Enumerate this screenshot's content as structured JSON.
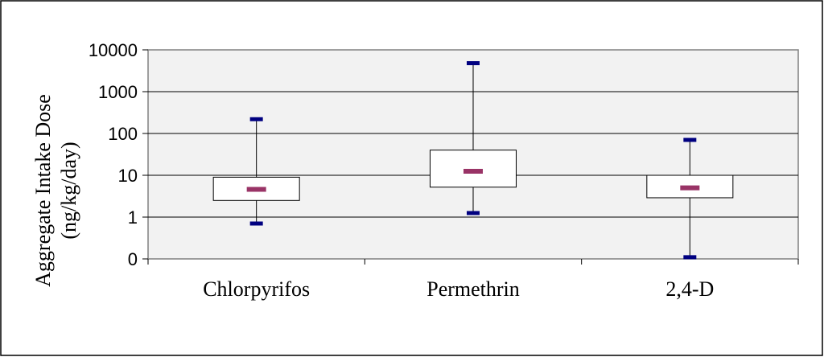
{
  "chart_data": {
    "type": "boxplot",
    "ylabel_line1": "Aggregate Intake Dose",
    "ylabel_line2": "(ng/kg/day)",
    "y_scale": "log",
    "ylim": [
      0.1,
      10000
    ],
    "yticks": [
      0.1,
      1,
      10,
      100,
      1000,
      10000
    ],
    "ytick_labels": [
      "0",
      "1",
      "10",
      "100",
      "1000",
      "10000"
    ],
    "grid": true,
    "categories": [
      "Chlorpyrifos",
      "Permethrin",
      "2,4-D"
    ],
    "boxes": [
      {
        "min": 0.7,
        "q1": 2.5,
        "median": 4.6,
        "q3": 9,
        "max": 220
      },
      {
        "min": 1.25,
        "q1": 5.2,
        "median": 12.5,
        "q3": 40,
        "max": 4800
      },
      {
        "min": 0.11,
        "q1": 2.9,
        "median": 5.0,
        "q3": 10,
        "max": 70
      }
    ],
    "colors": {
      "plot_bg": "#f2f2f2",
      "whisker_cap": "#000080",
      "median": "#993366",
      "grid": "#000000"
    }
  }
}
